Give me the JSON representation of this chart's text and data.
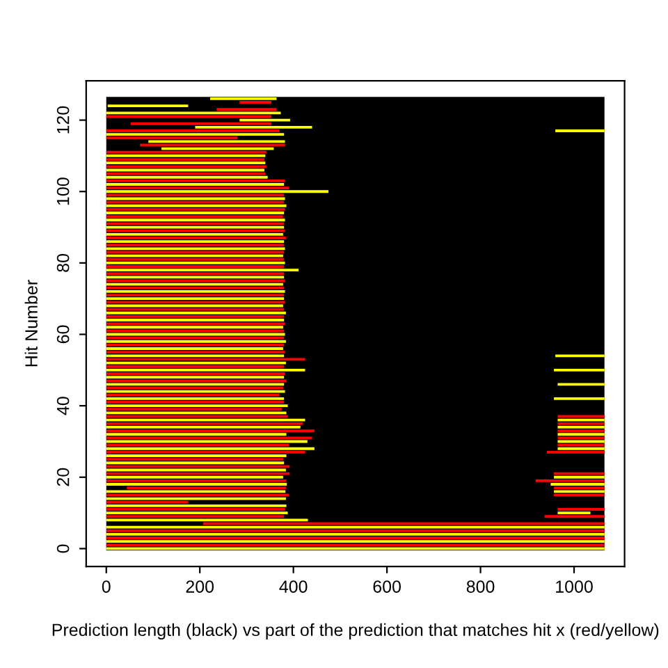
{
  "chart_data": {
    "type": "bar",
    "orientation": "horizontal",
    "xlabel": "Prediction length (black) vs part of the prediction that matches hit x (red/yellow)",
    "ylabel": "Hit Number",
    "x": [
      0,
      1,
      2,
      3,
      4,
      5,
      6,
      7,
      8,
      9,
      10,
      11,
      12,
      13,
      14,
      15,
      16,
      17,
      18,
      19,
      20,
      21,
      22,
      23,
      24,
      25,
      26,
      27,
      28,
      29,
      30,
      31,
      32,
      33,
      34,
      35,
      36,
      37,
      38,
      39,
      40,
      41,
      42,
      43,
      44,
      45,
      46,
      47,
      48,
      49,
      50,
      51,
      52,
      53,
      54,
      55,
      56,
      57,
      58,
      59,
      60,
      61,
      62,
      63,
      64,
      65,
      66,
      67,
      68,
      69,
      70,
      71,
      72,
      73,
      74,
      75,
      76,
      77,
      78,
      79,
      80,
      81,
      82,
      83,
      84,
      85,
      86,
      87,
      88,
      89,
      90,
      91,
      92,
      93,
      94,
      95,
      96,
      97,
      98,
      99,
      100,
      101,
      102,
      103,
      104,
      105,
      106,
      107,
      108,
      109,
      110,
      111,
      112,
      113,
      114,
      115,
      116,
      117,
      118,
      119,
      120,
      121,
      122,
      123,
      124,
      125,
      126
    ],
    "series": [
      {
        "colors": [
          "#ffff00",
          "#ff0000",
          "#ffff00",
          "#ff0000",
          "#ffff00",
          "#ff0000",
          "#ffff00",
          "#ff0000",
          "#ffff00",
          "#ff0000",
          "#ffff00",
          "#ff0000",
          "#ffff00",
          "#ff0000",
          "#ffff00",
          "#ff0000",
          "#ffff00",
          "#ff0000",
          "#ffff00",
          "#ff0000",
          "#ffff00",
          "#ff0000",
          "#ffff00",
          "#ff0000",
          "#ffff00",
          "#ff0000",
          "#ffff00",
          "#ff0000",
          "#ffff00",
          "#ff0000",
          "#ffff00",
          "#ff0000",
          "#ffff00",
          "#ff0000",
          "#ffff00",
          "#ff0000",
          "#ffff00",
          "#ff0000",
          "#ffff00",
          "#ff0000",
          "#ffff00",
          "#ff0000",
          "#ffff00",
          "#ff0000",
          "#ffff00",
          "#ff0000",
          "#ffff00",
          "#ff0000",
          "#ffff00",
          "#ff0000",
          "#ffff00",
          "#ff0000",
          "#ffff00",
          "#ff0000",
          "#ffff00",
          "#ff0000",
          "#ffff00",
          "#ff0000",
          "#ffff00",
          "#ff0000",
          "#ffff00",
          "#ff0000",
          "#ffff00",
          "#ff0000",
          "#ffff00",
          "#ff0000",
          "#ffff00",
          "#ff0000",
          "#ffff00",
          "#ff0000",
          "#ffff00",
          "#ff0000",
          "#ffff00",
          "#ff0000",
          "#ffff00",
          "#ff0000",
          "#ffff00",
          "#ff0000",
          "#ffff00",
          "#ff0000",
          "#ffff00",
          "#ff0000",
          "#ffff00",
          "#ff0000",
          "#ffff00",
          "#ff0000",
          "#ffff00",
          "#ff0000",
          "#ffff00",
          "#ff0000",
          "#ffff00",
          "#ff0000",
          "#ffff00",
          "#ff0000",
          "#ffff00",
          "#ff0000",
          "#ffff00",
          "#ff0000",
          "#ffff00",
          "#ff0000",
          "#ffff00",
          "#ff0000",
          "#ffff00",
          "#ff0000",
          "#ffff00",
          "#ff0000",
          "#ffff00",
          "#ff0000",
          "#ffff00",
          "#ff0000",
          "#ffff00",
          "#ff0000",
          "#ffff00",
          "#ff0000",
          "#ffff00",
          "#ff0000",
          "#ffff00",
          "#ff0000",
          "#ffff00",
          "#ff0000",
          "#ffff00",
          "#ff0000",
          "#ffff00",
          "#ff0000",
          "#ffff00",
          "#ff0000",
          "#ffff00"
        ],
        "base": [
          0,
          0,
          0,
          0,
          0,
          0,
          0,
          207,
          0,
          0,
          0,
          0,
          0,
          0,
          0,
          0,
          0,
          44,
          0,
          0,
          0,
          0,
          0,
          0,
          0,
          0,
          0,
          0,
          0,
          0,
          0,
          0,
          0,
          0,
          0,
          0,
          0,
          0,
          0,
          0,
          0,
          0,
          0,
          0,
          0,
          0,
          0,
          0,
          0,
          0,
          0,
          0,
          0,
          0,
          0,
          0,
          0,
          0,
          0,
          0,
          0,
          0,
          0,
          0,
          0,
          0,
          0,
          0,
          0,
          0,
          0,
          0,
          0,
          0,
          0,
          0,
          0,
          0,
          0,
          0,
          0,
          0,
          0,
          0,
          0,
          0,
          0,
          0,
          0,
          0,
          0,
          0,
          0,
          0,
          0,
          0,
          0,
          0,
          0,
          0,
          0,
          0,
          0,
          0,
          0,
          0,
          0,
          0,
          0,
          0,
          0,
          0,
          118,
          72,
          90,
          0,
          0,
          0,
          190,
          52,
          285,
          0,
          0,
          236,
          3,
          285,
          222
        ],
        "values": [
          1065,
          1065,
          1065,
          1065,
          1065,
          1065,
          1065,
          858,
          431,
          380,
          388,
          382,
          385,
          175,
          384,
          390,
          383,
          340,
          386,
          385,
          378,
          392,
          384,
          392,
          380,
          378,
          385,
          425,
          445,
          390,
          430,
          440,
          385,
          445,
          415,
          420,
          425,
          388,
          385,
          375,
          388,
          380,
          380,
          370,
          382,
          378,
          380,
          385,
          380,
          382,
          425,
          380,
          384,
          425,
          380,
          382,
          378,
          380,
          384,
          380,
          382,
          380,
          378,
          382,
          380,
          380,
          384,
          380,
          378,
          382,
          380,
          380,
          382,
          380,
          378,
          382,
          380,
          380,
          411,
          380,
          382,
          380,
          378,
          380,
          382,
          380,
          380,
          384,
          378,
          382,
          380,
          380,
          382,
          378,
          380,
          382,
          385,
          380,
          382,
          380,
          475,
          390,
          380,
          382,
          345,
          340,
          338,
          342,
          340,
          338,
          340,
          342,
          240,
          310,
          292,
          280,
          380,
          370,
          250,
          301,
          108,
          353,
          373,
          128,
          172,
          68,
          142
        ]
      },
      {
        "colors": [
          null,
          null,
          null,
          null,
          null,
          null,
          null,
          null,
          null,
          "#ff0000",
          "#ffff00",
          "#ff0000",
          null,
          null,
          null,
          "#ff0000",
          "#ffff00",
          "#ff0000",
          "#ffff00",
          "#ff0000",
          "#ffff00",
          "#ff0000",
          null,
          null,
          null,
          null,
          null,
          "#ff0000",
          "#ffff00",
          "#ff0000",
          "#ffff00",
          "#ff0000",
          "#ffff00",
          "#ff0000",
          "#ffff00",
          "#ff0000",
          "#ffff00",
          "#ff0000",
          null,
          null,
          null,
          null,
          "#ffff00",
          null,
          null,
          null,
          "#ffff00",
          null,
          null,
          null,
          "#ffff00",
          null,
          null,
          null,
          "#ffff00",
          null,
          null,
          null,
          null,
          null,
          null,
          null,
          null,
          null,
          null,
          null,
          null,
          null,
          null,
          null,
          null,
          null,
          null,
          null,
          null,
          null,
          null,
          null,
          null,
          null,
          null,
          null,
          null,
          null,
          null,
          null,
          null,
          null,
          null,
          null,
          null,
          null,
          null,
          null,
          null,
          null,
          null,
          null,
          null,
          null,
          null,
          null,
          null,
          null,
          null,
          null,
          null,
          null,
          null,
          null,
          null,
          null,
          null,
          null,
          null,
          null,
          null,
          "#ffff00",
          null,
          null,
          null,
          null,
          null,
          null,
          null,
          null,
          null
        ],
        "base": [
          null,
          null,
          null,
          null,
          null,
          null,
          null,
          null,
          null,
          937,
          965,
          965,
          null,
          null,
          null,
          957,
          957,
          957,
          950,
          918,
          957,
          957,
          null,
          null,
          null,
          null,
          null,
          942,
          965,
          965,
          965,
          965,
          965,
          965,
          965,
          965,
          965,
          965,
          null,
          null,
          null,
          null,
          957,
          null,
          null,
          null,
          965,
          null,
          null,
          null,
          957,
          null,
          null,
          null,
          960,
          null,
          null,
          null,
          null,
          null,
          null,
          null,
          null,
          null,
          null,
          null,
          null,
          null,
          null,
          null,
          null,
          null,
          null,
          null,
          null,
          null,
          null,
          null,
          null,
          null,
          null,
          null,
          null,
          null,
          null,
          null,
          null,
          null,
          null,
          null,
          null,
          null,
          null,
          null,
          null,
          null,
          null,
          null,
          null,
          null,
          null,
          null,
          null,
          null,
          null,
          null,
          null,
          null,
          null,
          null,
          null,
          null,
          null,
          null,
          null,
          null,
          null,
          960,
          null,
          null,
          null,
          null,
          null,
          null,
          null,
          null,
          null
        ],
        "values": [
          null,
          null,
          null,
          null,
          null,
          null,
          null,
          null,
          null,
          128,
          70,
          100,
          null,
          null,
          null,
          108,
          108,
          108,
          115,
          147,
          108,
          108,
          null,
          null,
          null,
          null,
          null,
          123,
          100,
          100,
          100,
          100,
          100,
          100,
          100,
          100,
          100,
          100,
          null,
          null,
          null,
          null,
          108,
          null,
          null,
          null,
          100,
          null,
          null,
          null,
          108,
          null,
          null,
          null,
          105,
          null,
          null,
          null,
          null,
          null,
          null,
          null,
          null,
          null,
          null,
          null,
          null,
          null,
          null,
          null,
          null,
          null,
          null,
          null,
          null,
          null,
          null,
          null,
          null,
          null,
          null,
          null,
          null,
          null,
          null,
          null,
          null,
          null,
          null,
          null,
          null,
          null,
          null,
          null,
          null,
          null,
          null,
          null,
          null,
          null,
          null,
          null,
          null,
          null,
          null,
          null,
          null,
          null,
          null,
          null,
          null,
          null,
          null,
          null,
          null,
          null,
          null,
          105,
          null,
          null,
          null,
          null,
          null,
          null,
          null,
          null,
          null
        ]
      }
    ],
    "xlim": [
      -43,
      1108
    ],
    "ylim": [
      -5,
      131
    ],
    "xticks": [
      0,
      200,
      400,
      600,
      800,
      1000
    ],
    "yticks": [
      0,
      20,
      40,
      60,
      80,
      100,
      120
    ],
    "bands": [
      {
        "axis": "x",
        "from": 0,
        "to": 1065,
        "color": "#000000"
      }
    ],
    "grid": false,
    "legend": false
  }
}
